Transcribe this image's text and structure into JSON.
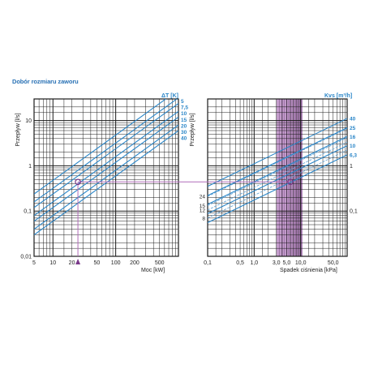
{
  "title": "Dobór rozmiaru zaworu",
  "colors": {
    "grid": "#1a1a1a",
    "series": "#2a86c8",
    "series_alt": "#5aa0d6",
    "band_fill": "#b98bc2",
    "band_line": "#7d4e8a",
    "guide": "#b06bb9",
    "marker": "#7a3a8a"
  },
  "chart_data": [
    {
      "type": "line",
      "scale": "log-log",
      "xlabel": "Moc [kW]",
      "ylabel": "Przepływ [l/s]",
      "xlim": [
        5,
        1000
      ],
      "ylim": [
        0.01,
        30
      ],
      "x_ticks": [
        "5",
        "10",
        "20",
        "50",
        "100",
        "200",
        "500"
      ],
      "x_tick_values": [
        5,
        10,
        20,
        50,
        100,
        200,
        500
      ],
      "y_ticks": [
        "0,01",
        "0,1",
        "1",
        "10"
      ],
      "y_tick_values": [
        0.01,
        0.1,
        1,
        10
      ],
      "legend_title": "ΔT [K]",
      "series": [
        {
          "name": "5",
          "dt": 5
        },
        {
          "name": "7,5",
          "dt": 7.5
        },
        {
          "name": "10",
          "dt": 10
        },
        {
          "name": "15",
          "dt": 15
        },
        {
          "name": "20",
          "dt": 20
        },
        {
          "name": "30",
          "dt": 30
        },
        {
          "name": "40",
          "dt": 40
        }
      ],
      "example_point": {
        "x": 25,
        "y": 0.44
      },
      "grid": true
    },
    {
      "type": "line",
      "scale": "log-log",
      "xlabel": "Spadek ciśnienia [kPa]",
      "ylabel": "Przepływ [l/s]",
      "xlim": [
        0.1,
        100
      ],
      "ylim": [
        0.01,
        30
      ],
      "x_ticks": [
        "0,1",
        "0,5",
        "1,0",
        "3,0",
        "5,0",
        "10,0",
        "50,0"
      ],
      "x_tick_values": [
        0.1,
        0.5,
        1,
        3,
        5,
        10,
        50
      ],
      "y_ticks": [
        "1",
        "0,1"
      ],
      "y_tick_values": [
        1,
        0.1
      ],
      "legend_title": "Kvs [m³/h]",
      "series_right": [
        {
          "name": "40",
          "kvs": 40
        },
        {
          "name": "25",
          "kvs": 25
        },
        {
          "name": "16",
          "kvs": 16
        },
        {
          "name": "10",
          "kvs": 10
        },
        {
          "name": "6,3",
          "kvs": 6.3
        }
      ],
      "series_left": [
        {
          "name": "24",
          "kvs": 24
        },
        {
          "name": "15",
          "kvs": 15
        },
        {
          "name": "12",
          "kvs": 12
        },
        {
          "name": "8",
          "kvs": 8
        }
      ],
      "recommended_range": [
        3,
        11
      ],
      "example_point": {
        "x": 6,
        "y": 0.44
      },
      "grid": true
    }
  ]
}
